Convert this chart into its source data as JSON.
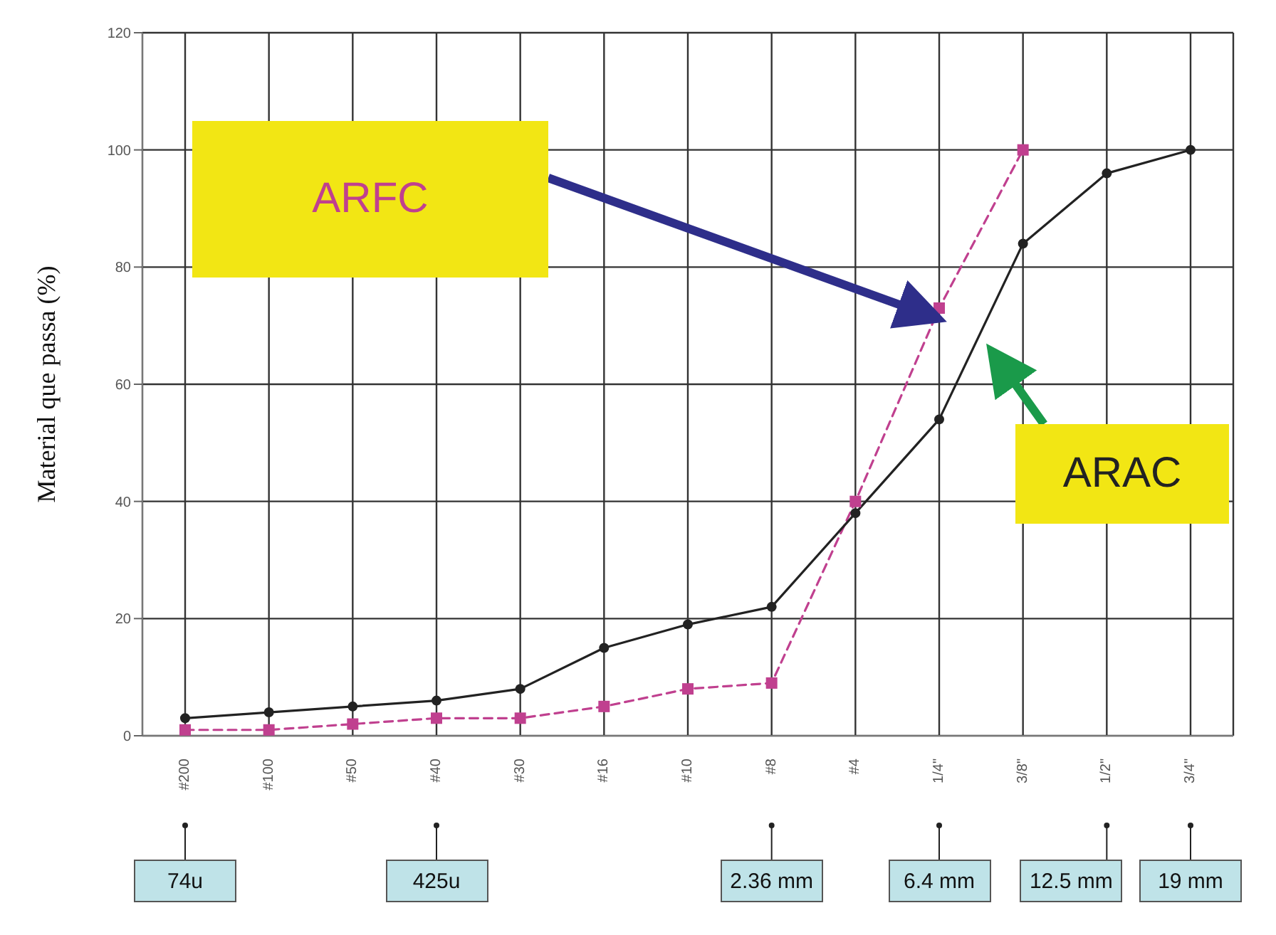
{
  "chart_data": {
    "type": "line",
    "ylabel": "Material que passa (%)",
    "categories": [
      "#200",
      "#100",
      "#50",
      "#40",
      "#30",
      "#16",
      "#10",
      "#8",
      "#4",
      "1/4\"",
      "3/8\"",
      "1/2\"",
      "3/4\""
    ],
    "series": [
      {
        "name": "ARFC",
        "color": "#c0408f",
        "values": [
          1,
          1,
          2,
          3,
          3,
          5,
          8,
          9,
          40,
          73,
          100,
          null,
          null
        ],
        "marker": "square",
        "line_style": "dashed"
      },
      {
        "name": "ARAC",
        "color": "#222222",
        "values": [
          3,
          4,
          5,
          6,
          8,
          15,
          19,
          22,
          38,
          54,
          84,
          96,
          100
        ],
        "marker": "circle",
        "line_style": "solid"
      }
    ],
    "ylim": [
      0,
      120
    ],
    "yticks": [
      0,
      20,
      40,
      60,
      80,
      100,
      120
    ],
    "grid": true,
    "legend": false,
    "annotations": [
      "74u",
      "425u",
      "2.36 mm",
      "6.4 mm",
      "12.5 mm",
      "19 mm"
    ]
  }
}
